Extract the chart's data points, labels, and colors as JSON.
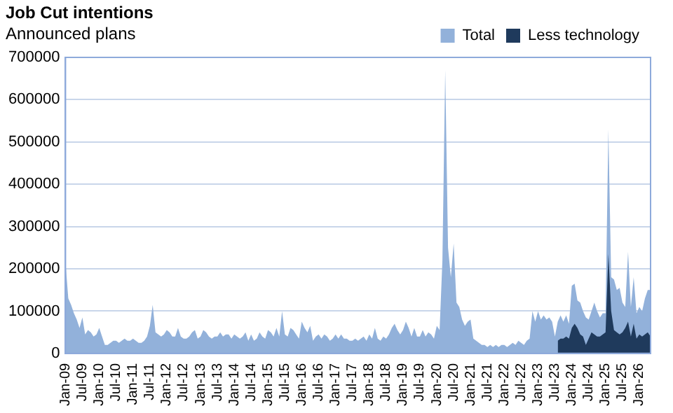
{
  "chart_data": {
    "type": "area",
    "title": "Job Cut intentions",
    "subtitle": "Announced plans",
    "categories": [
      "Jan-09",
      null,
      null,
      null,
      null,
      null,
      "Jul-09",
      null,
      null,
      null,
      null,
      null,
      "Jan-10",
      null,
      null,
      null,
      null,
      null,
      "Jul-10",
      null,
      null,
      null,
      null,
      null,
      "Jan-11",
      null,
      null,
      null,
      null,
      null,
      "Jul-11",
      null,
      null,
      null,
      null,
      null,
      "Jan-12",
      null,
      null,
      null,
      null,
      null,
      "Jul-12",
      null,
      null,
      null,
      null,
      null,
      "Jan-13",
      null,
      null,
      null,
      null,
      null,
      "Jul-13",
      null,
      null,
      null,
      null,
      null,
      "Jan-14",
      null,
      null,
      null,
      null,
      null,
      "Jul-14",
      null,
      null,
      null,
      null,
      null,
      "Jan-15",
      null,
      null,
      null,
      null,
      null,
      "Jul-15",
      null,
      null,
      null,
      null,
      null,
      "Jan-16",
      null,
      null,
      null,
      null,
      null,
      "Jul-16",
      null,
      null,
      null,
      null,
      null,
      "Jan-17",
      null,
      null,
      null,
      null,
      null,
      "Jul-17",
      null,
      null,
      null,
      null,
      null,
      "Jan-18",
      null,
      null,
      null,
      null,
      null,
      "Jul-18",
      null,
      null,
      null,
      null,
      null,
      "Jan-19",
      null,
      null,
      null,
      null,
      null,
      "Jul-19",
      null,
      null,
      null,
      null,
      null,
      "Jan-20",
      null,
      null,
      null,
      null,
      null,
      "Jul-20",
      null,
      null,
      null,
      null,
      null,
      "Jan-21",
      null,
      null,
      null,
      null,
      null,
      "Jul-21",
      null,
      null,
      null,
      null,
      null,
      "Jan-22",
      null,
      null,
      null,
      null,
      null,
      "Jul-22",
      null,
      null,
      null,
      null,
      null,
      "Jan-23",
      null,
      null,
      null,
      null,
      null,
      "Jul-23",
      null,
      null,
      null,
      null,
      null,
      "Jan-24",
      null,
      null,
      null,
      null,
      null,
      "Jul-24",
      null,
      null,
      null,
      null,
      null,
      "Jan-25",
      null,
      null,
      null,
      null,
      null,
      "Jul-25",
      null,
      null,
      null,
      null,
      null,
      "Jan-26",
      null,
      null,
      null,
      null
    ],
    "series": [
      {
        "name": "Total",
        "color": "#92b1da",
        "values": [
          215000,
          130000,
          115000,
          95000,
          80000,
          60000,
          85000,
          45000,
          55000,
          50000,
          40000,
          45000,
          60000,
          40000,
          20000,
          20000,
          25000,
          30000,
          30000,
          25000,
          30000,
          35000,
          30000,
          30000,
          35000,
          30000,
          25000,
          25000,
          30000,
          40000,
          65000,
          115000,
          50000,
          45000,
          40000,
          45000,
          55000,
          50000,
          40000,
          40000,
          60000,
          40000,
          35000,
          35000,
          40000,
          50000,
          55000,
          35000,
          40000,
          55000,
          50000,
          40000,
          35000,
          40000,
          40000,
          50000,
          40000,
          45000,
          45000,
          35000,
          45000,
          40000,
          35000,
          40000,
          50000,
          30000,
          45000,
          30000,
          35000,
          50000,
          40000,
          35000,
          55000,
          50000,
          40000,
          60000,
          40000,
          100000,
          45000,
          40000,
          60000,
          55000,
          45000,
          35000,
          75000,
          60000,
          50000,
          65000,
          30000,
          40000,
          45000,
          35000,
          45000,
          40000,
          30000,
          35000,
          45000,
          35000,
          45000,
          35000,
          35000,
          30000,
          30000,
          35000,
          30000,
          35000,
          40000,
          30000,
          45000,
          35000,
          60000,
          35000,
          30000,
          40000,
          35000,
          45000,
          60000,
          70000,
          55000,
          45000,
          55000,
          75000,
          60000,
          40000,
          60000,
          40000,
          40000,
          55000,
          40000,
          50000,
          45000,
          35000,
          65000,
          55000,
          220000,
          670000,
          250000,
          180000,
          260000,
          120000,
          110000,
          80000,
          65000,
          75000,
          80000,
          35000,
          30000,
          25000,
          20000,
          20000,
          15000,
          20000,
          15000,
          20000,
          15000,
          20000,
          20000,
          15000,
          20000,
          25000,
          20000,
          30000,
          25000,
          20000,
          30000,
          35000,
          100000,
          75000,
          100000,
          80000,
          90000,
          80000,
          85000,
          75000,
          40000,
          75000,
          90000,
          75000,
          90000,
          70000,
          160000,
          165000,
          125000,
          120000,
          100000,
          85000,
          80000,
          100000,
          120000,
          100000,
          85000,
          95000,
          95000,
          530000,
          180000,
          175000,
          150000,
          155000,
          120000,
          110000,
          240000,
          110000,
          180000,
          95000,
          110000,
          100000,
          130000,
          150000,
          150000
        ]
      },
      {
        "name": "Less technology",
        "color": "#1f3a5c",
        "values": [
          null,
          null,
          null,
          null,
          null,
          null,
          null,
          null,
          null,
          null,
          null,
          null,
          null,
          null,
          null,
          null,
          null,
          null,
          null,
          null,
          null,
          null,
          null,
          null,
          null,
          null,
          null,
          null,
          null,
          null,
          null,
          null,
          null,
          null,
          null,
          null,
          null,
          null,
          null,
          null,
          null,
          null,
          null,
          null,
          null,
          null,
          null,
          null,
          null,
          null,
          null,
          null,
          null,
          null,
          null,
          null,
          null,
          null,
          null,
          null,
          null,
          null,
          null,
          null,
          null,
          null,
          null,
          null,
          null,
          null,
          null,
          null,
          null,
          null,
          null,
          null,
          null,
          null,
          null,
          null,
          null,
          null,
          null,
          null,
          null,
          null,
          null,
          null,
          null,
          null,
          null,
          null,
          null,
          null,
          null,
          null,
          null,
          null,
          null,
          null,
          null,
          null,
          null,
          null,
          null,
          null,
          null,
          null,
          null,
          null,
          null,
          null,
          null,
          null,
          null,
          null,
          null,
          null,
          null,
          null,
          null,
          null,
          null,
          null,
          null,
          null,
          null,
          null,
          null,
          null,
          null,
          null,
          null,
          null,
          null,
          null,
          null,
          null,
          null,
          null,
          null,
          null,
          null,
          null,
          null,
          null,
          null,
          null,
          null,
          null,
          null,
          null,
          null,
          null,
          null,
          null,
          null,
          null,
          null,
          null,
          null,
          null,
          null,
          null,
          null,
          null,
          null,
          null,
          null,
          null,
          null,
          null,
          null,
          null,
          null,
          30000,
          35000,
          35000,
          40000,
          35000,
          60000,
          70000,
          60000,
          45000,
          40000,
          20000,
          35000,
          50000,
          45000,
          40000,
          40000,
          45000,
          50000,
          235000,
          100000,
          55000,
          50000,
          45000,
          50000,
          60000,
          75000,
          40000,
          70000,
          35000,
          45000,
          40000,
          45000,
          50000,
          40000
        ]
      }
    ],
    "ylim": [
      0,
      700000
    ],
    "yticks": [
      0,
      100000,
      200000,
      300000,
      400000,
      500000,
      600000,
      700000
    ],
    "grid": "y",
    "legend": "top right"
  }
}
